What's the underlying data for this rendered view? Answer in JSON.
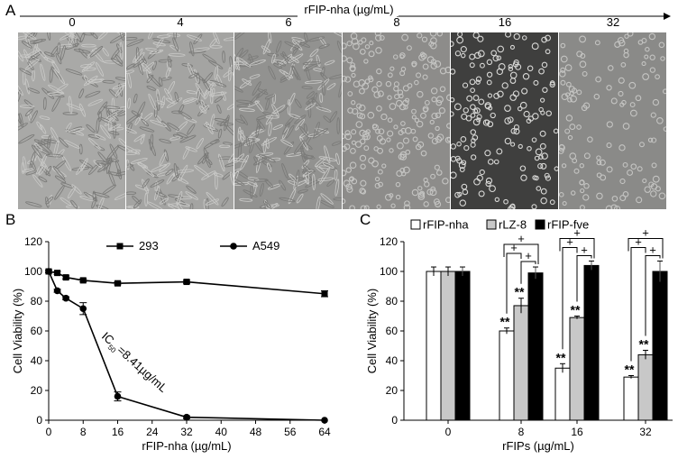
{
  "panel_a": {
    "letter": "A",
    "arrow_label": "rFIP-nha (µg/mL)",
    "concentrations": [
      "0",
      "4",
      "6",
      "8",
      "16",
      "32"
    ],
    "image_tones": [
      "#a9a9a7",
      "#a4a4a2",
      "#929290",
      "#8d8c8a",
      "#3f3f3e",
      "#8a8a88"
    ]
  },
  "panel_b": {
    "letter": "B",
    "ic50_text": "IC",
    "ic50_sub": "50",
    "ic50_rest": "=8.41µg/mL",
    "legend": [
      {
        "name": "293",
        "marker": "square"
      },
      {
        "name": "A549",
        "marker": "circle"
      }
    ]
  },
  "panel_c": {
    "letter": "C",
    "legend": [
      {
        "name": "rFIP-nha",
        "color": "#ffffff"
      },
      {
        "name": "rLZ-8",
        "color": "#c8c8c8"
      },
      {
        "name": "rFIP-fve",
        "color": "#000000"
      }
    ],
    "sig_star": "**",
    "sig_plus": "+"
  },
  "chart_data": [
    {
      "type": "line",
      "xlabel": "rFIP-nha (µg/mL)",
      "ylabel": "Cell Viability (%)",
      "xlim": [
        0,
        64
      ],
      "ylim": [
        0,
        120
      ],
      "x_ticks": [
        0,
        8,
        16,
        24,
        32,
        40,
        48,
        56,
        64
      ],
      "y_ticks": [
        0,
        20,
        40,
        60,
        80,
        100,
        120
      ],
      "series": [
        {
          "name": "293",
          "x": [
            0,
            2,
            4,
            8,
            16,
            32,
            64
          ],
          "y": [
            100,
            99,
            96,
            94,
            92,
            93,
            85
          ],
          "err": [
            0,
            1,
            1,
            1,
            1,
            1,
            2
          ]
        },
        {
          "name": "A549",
          "x": [
            0,
            2,
            4,
            8,
            16,
            32,
            64
          ],
          "y": [
            100,
            87,
            82,
            75,
            16,
            2,
            0
          ],
          "err": [
            1,
            1,
            1,
            4,
            3,
            1,
            0
          ]
        }
      ],
      "grid": false
    },
    {
      "type": "bar",
      "xlabel": "rFIPs (µg/mL)",
      "ylabel": "Cell Viability (%)",
      "ylim": [
        0,
        120
      ],
      "y_ticks": [
        0,
        20,
        40,
        60,
        80,
        100,
        120
      ],
      "categories": [
        "0",
        "8",
        "16",
        "32"
      ],
      "series": [
        {
          "name": "rFIP-nha",
          "values": [
            100,
            60,
            35,
            29
          ],
          "err": [
            3,
            2,
            3,
            1
          ]
        },
        {
          "name": "rLZ-8",
          "values": [
            100,
            77,
            69,
            44
          ],
          "err": [
            3,
            5,
            1,
            3
          ]
        },
        {
          "name": "rFIP-fve",
          "values": [
            100,
            99,
            104,
            100
          ],
          "err": [
            3,
            4,
            3,
            7
          ]
        }
      ],
      "grid": false
    }
  ]
}
